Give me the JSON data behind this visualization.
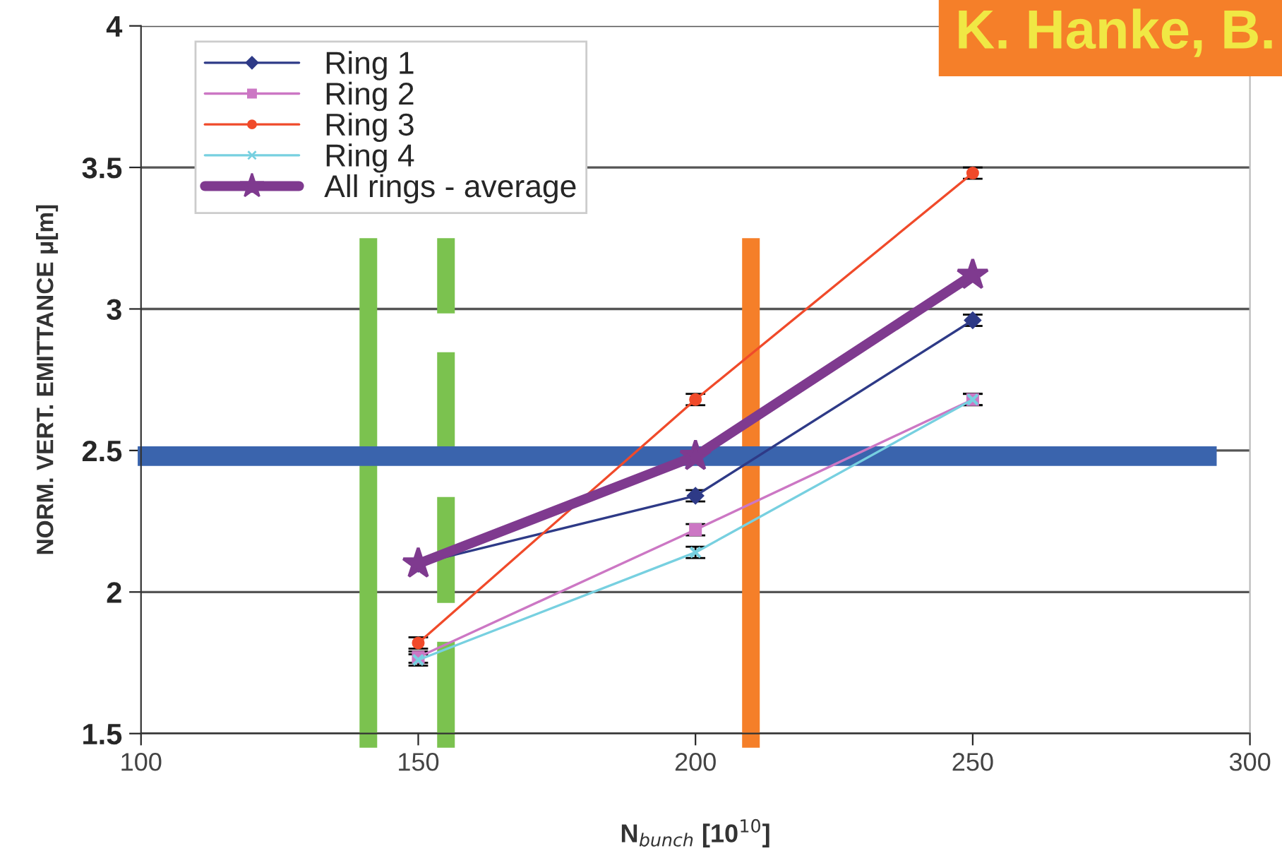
{
  "chart_data": {
    "type": "line",
    "x": [
      150,
      200,
      250
    ],
    "series": [
      {
        "name": "Ring 1",
        "color": "#2e3a87",
        "marker": "diamond",
        "values": [
          2.1,
          2.34,
          2.96
        ],
        "errors": [
          null,
          0.02,
          0.02
        ]
      },
      {
        "name": "Ring 2",
        "color": "#cc77c4",
        "marker": "square",
        "values": [
          1.77,
          2.22,
          2.68
        ],
        "errors": [
          0.02,
          0.02,
          0.02
        ]
      },
      {
        "name": "Ring 3",
        "color": "#f04a2a",
        "marker": "circle",
        "values": [
          1.82,
          2.68,
          3.48
        ],
        "errors": [
          0.02,
          0.02,
          0.02
        ]
      },
      {
        "name": "Ring 4",
        "color": "#77d0e0",
        "marker": "cross",
        "values": [
          1.76,
          2.14,
          2.68
        ],
        "errors": [
          0.02,
          0.02,
          0.02
        ]
      },
      {
        "name": "All rings - average",
        "color": "#7f3a8f",
        "marker": "star",
        "values": [
          2.1,
          2.48,
          3.12
        ]
      }
    ],
    "xlabel": "N$_{bunch}$ [10$^{10}$]",
    "ylabel": "NORM. VERT. EMITTANCE μ[m]",
    "xlim": [
      100,
      300
    ],
    "xticks": [
      100,
      150,
      200,
      250,
      300
    ],
    "ylim": [
      1.5,
      4
    ],
    "yticks": [
      1.5,
      2,
      2.5,
      3,
      3.5,
      4
    ],
    "grid": "y",
    "legend": "top left",
    "ref_lines": [
      {
        "axis": "x",
        "value": 141,
        "color": "#7bc24f",
        "line_style": "solid"
      },
      {
        "axis": "x",
        "value": 155,
        "color": "#7bc24f",
        "line_style": "dashed"
      },
      {
        "axis": "x",
        "value": 210,
        "color": "#f57f29",
        "line_style": "solid"
      },
      {
        "axis": "y",
        "value": 2.48,
        "color": "#3a64ad",
        "line_style": "solid"
      }
    ],
    "annotations": [
      "K. Hanke, B."
    ]
  }
}
